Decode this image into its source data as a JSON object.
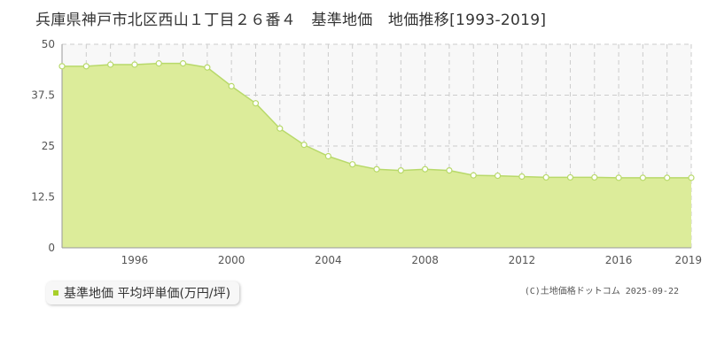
{
  "title": "兵庫県神戸市北区西山１丁目２６番４　基準地価　地価推移[1993-2019]",
  "legend": {
    "label": "基準地価 平均坪単価(万円/坪)"
  },
  "copyright": "(C)土地価格ドットコム 2025-09-22",
  "colors": {
    "fill": "#dcec9a",
    "line": "#b8d96a",
    "marker": "#a8cf2a",
    "grid": "#cccccc",
    "plot_bg": "#f8f8f8"
  },
  "chart_data": {
    "type": "area",
    "xlim": [
      1993,
      2019
    ],
    "ylim": [
      0,
      50
    ],
    "yticks": [
      0,
      12.5,
      25,
      37.5,
      50
    ],
    "ytick_labels": [
      "0",
      "12.5",
      "25",
      "37.5",
      "50"
    ],
    "xticks": [
      1996,
      2000,
      2004,
      2008,
      2012,
      2016,
      2019
    ],
    "xtick_labels": [
      "1996",
      "2000",
      "2004",
      "2008",
      "2012",
      "2016",
      "2019"
    ],
    "grid": true,
    "series": [
      {
        "x": [
          1993,
          1994,
          1995,
          1996,
          1997,
          1998,
          1999,
          2000,
          2001,
          2002,
          2003,
          2004,
          2005,
          2006,
          2007,
          2008,
          2009,
          2010,
          2011,
          2012,
          2013,
          2014,
          2015,
          2016,
          2017,
          2018,
          2019
        ],
        "values": [
          44.6,
          44.6,
          45.0,
          45.0,
          45.3,
          45.3,
          44.3,
          39.7,
          35.5,
          29.3,
          25.3,
          22.5,
          20.5,
          19.3,
          19.0,
          19.3,
          19.0,
          17.8,
          17.7,
          17.5,
          17.3,
          17.3,
          17.3,
          17.2,
          17.2,
          17.2,
          17.2
        ]
      }
    ]
  }
}
